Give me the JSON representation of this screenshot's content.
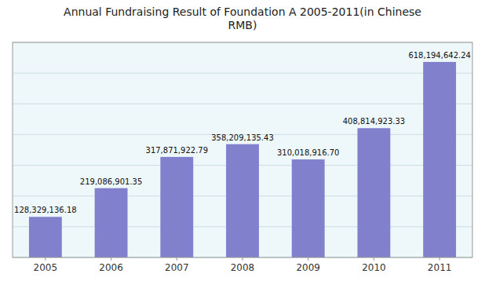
{
  "chart_data": {
    "type": "bar",
    "title": "Annual Fundraising Result of Foundation A 2005-2011(in Chinese\nRMB)",
    "categories": [
      "2005",
      "2006",
      "2007",
      "2008",
      "2009",
      "2010",
      "2011"
    ],
    "values": [
      128329136.18,
      219086901.35,
      317871922.79,
      358209135.43,
      310018916.7,
      408814923.33,
      618194642.24
    ],
    "value_labels": [
      "128,329,136.18",
      "219,086,901.35",
      "317,871,922.79",
      "358,209,135.43",
      "310,018,916.70",
      "408,814,923.33",
      "618,194,642.24"
    ],
    "data_labels": true,
    "color": "#8080cc",
    "ylim": [
      0,
      680000000
    ],
    "yticks": [
      0,
      97142857.14285715,
      194285714.2857143,
      291428571.4285714,
      388571428.5714286,
      485714285.7142857,
      582857142.8571429,
      680000000
    ],
    "grid": true,
    "tick_labels": "x"
  }
}
